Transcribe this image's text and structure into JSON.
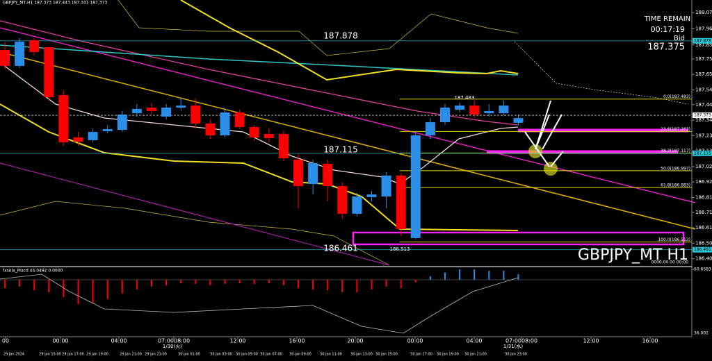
{
  "chart_data": {
    "type": "candlestick",
    "symbol_header": "GBPJPY_MT,H1 187.373 187.443 187.341 187.373",
    "up_color": "#2b8ee8",
    "down_color": "#ff0000",
    "open": [
      187.816,
      187.708,
      187.882,
      187.835,
      187.51,
      187.223,
      187.204,
      187.265,
      187.274,
      187.387,
      187.425,
      187.364,
      187.425,
      187.439,
      187.317,
      187.237,
      187.392,
      187.293,
      187.246,
      187.246,
      187.072,
      186.907,
      187.044,
      186.893,
      186.705,
      186.818,
      186.822,
      186.964,
      186.54,
      187.237,
      187.326,
      187.411,
      187.439,
      187.387,
      187.387,
      187.322
    ],
    "close": [
      187.708,
      187.872,
      187.802,
      187.496,
      187.19,
      187.194,
      187.26,
      187.279,
      187.378,
      187.416,
      187.402,
      187.425,
      187.439,
      187.317,
      187.237,
      187.392,
      187.293,
      187.223,
      187.218,
      187.081,
      186.893,
      187.048,
      186.893,
      186.705,
      186.822,
      186.836,
      186.964,
      186.601,
      187.237,
      187.326,
      187.425,
      187.439,
      187.378,
      187.402,
      187.439,
      187.354
    ],
    "high": [
      187.872,
      187.896,
      187.896,
      187.835,
      187.543,
      187.26,
      187.284,
      187.307,
      187.402,
      187.449,
      187.458,
      187.449,
      187.496,
      187.486,
      187.345,
      187.425,
      187.411,
      187.307,
      187.284,
      187.27,
      187.11,
      187.072,
      187.072,
      186.921,
      186.846,
      186.86,
      186.987,
      186.978,
      187.26,
      187.354,
      187.449,
      187.458,
      187.472,
      187.449,
      187.472,
      187.378
    ],
    "low": [
      187.684,
      187.694,
      187.778,
      187.472,
      187.166,
      187.166,
      187.19,
      187.251,
      187.26,
      187.364,
      187.378,
      187.345,
      187.402,
      187.284,
      187.213,
      187.223,
      187.279,
      187.199,
      187.19,
      187.063,
      186.742,
      186.836,
      186.789,
      186.672,
      186.686,
      186.789,
      186.742,
      186.554,
      186.53,
      187.213,
      187.307,
      187.392,
      187.354,
      187.364,
      187.373,
      187.307
    ],
    "ylim": [
      186.356,
      188.155
    ],
    "yticks": [
      {
        "value": 188.07,
        "label": "188.070"
      },
      187.96,
      {
        "value": 187.85,
        "label": "187.850"
      },
      187.755,
      {
        "value": 187.65,
        "label": "187.650"
      },
      187.545,
      187.445,
      {
        "value": 187.34,
        "label": "187.340"
      },
      187.235,
      {
        "value": 187.13,
        "label": "187.130"
      },
      187.025,
      {
        "value": 186.92,
        "label": "186.920"
      },
      186.815,
      186.715,
      {
        "value": 186.61,
        "label": "186.610"
      },
      186.505,
      {
        "value": 186.4,
        "label": "186.400"
      }
    ],
    "price_lines": [
      {
        "value": 187.878,
        "color": "#29c5d6"
      },
      {
        "value": 187.373,
        "color": "#ffffff"
      },
      {
        "value": 187.115,
        "color": "#29c5d6"
      },
      {
        "value": 186.461,
        "color": "#29c5d6"
      }
    ],
    "fib": [
      {
        "label": "0.0(187.483)",
        "value": 187.483
      },
      {
        "label": "23.6(187.263)",
        "value": 187.263
      },
      {
        "label": "38.2(187.117)",
        "value": 187.117
      },
      {
        "label": "50.0(186.997)",
        "value": 186.997
      },
      {
        "label": "61.8(186.883)",
        "value": 186.883
      },
      {
        "label": "100.0(186.513)",
        "value": 186.513
      }
    ],
    "annotations": [
      187.878,
      187.115,
      186.461,
      186.513,
      187.483
    ],
    "watermark": "GBPJPY_MT H1",
    "date_stub": "0000.00.00 00:00",
    "time_remain": {
      "label": "TIME REMAIN",
      "value": "00:17:19",
      "bid_label": "Bid",
      "bid": 187.375
    },
    "x_axis": {
      "major": [
        "00",
        "00:00",
        "04:00",
        "07:0008:00",
        "12:00",
        "16:00",
        "20:00",
        "00:00",
        "04:00",
        "07:0008:00",
        "12:00",
        "16:00"
      ],
      "dates": [
        "1/30(火)",
        "1/31(水)"
      ],
      "minor": [
        "29 Jan 2024",
        "29 Jan 15:00",
        "29 Jan 17:00",
        "29 Jan 19:00",
        "29 Jan 21:00",
        "29 Jan 23:00",
        "30 Jan 01:00",
        "30 Jan 03:00",
        "30 Jan 05:00",
        "30 Jan 07:00",
        "30 Jan 09:00",
        "30 Jan 11:00",
        "30 Jan 13:00",
        "30 Jan 15:00",
        "30 Jan 17:00",
        "30 Jan 19:00",
        "30 Jan 21:00",
        "30 Jan 23:00"
      ]
    },
    "macd": {
      "title": "fxsola_Macd 44.0492 0.0000",
      "values": [
        -40.5,
        -33.8,
        -50.7,
        -60.8,
        -84.4,
        -118.2,
        -111.4,
        -94.6,
        -67.5,
        -47.3,
        -33.8,
        -27.0,
        -16.9,
        -20.3,
        -27.0,
        -20.3,
        -16.9,
        -20.3,
        -16.9,
        -27.0,
        -40.5,
        -47.3,
        -50.7,
        -60.8,
        -60.8,
        -47.3,
        -33.8,
        -40.5,
        -13.5,
        16.9,
        33.8,
        50.7,
        50.7,
        43.9,
        43.9,
        27.0
      ],
      "ylim": [
        -260,
        50.6583
      ],
      "yticks": [
        50.6583
      ],
      "bottom_label": "36.001"
    }
  }
}
